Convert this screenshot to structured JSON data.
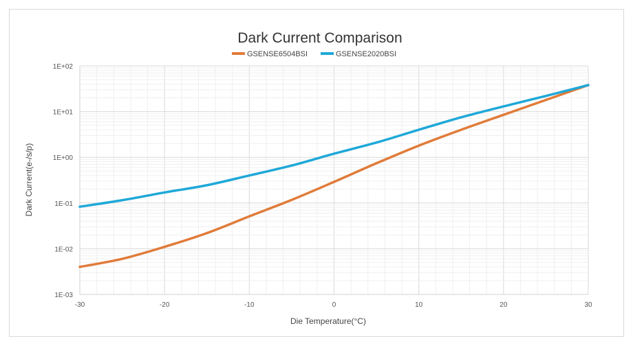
{
  "chart_data": {
    "type": "line",
    "title": "Dark Current Comparison",
    "xlabel": "Die Temperature(°C)",
    "ylabel": "Dark Current(e-/s/p)",
    "xlim": [
      -30,
      30
    ],
    "ylim": [
      0.001,
      100
    ],
    "yscale": "log",
    "grid": true,
    "legend_position": "top-center",
    "x_ticks": [
      -30,
      -20,
      -10,
      0,
      10,
      20,
      30
    ],
    "x_tick_labels": [
      "-30",
      "-20",
      "-10",
      "0",
      "10",
      "20",
      "30"
    ],
    "y_tick_labels": [
      "1E+02",
      "1E+01",
      "1E+00",
      "1E-01",
      "1E-02",
      "1E-03"
    ],
    "x": [
      -30,
      -25,
      -20,
      -15,
      -10,
      -5,
      0,
      5,
      10,
      15,
      20,
      25,
      30
    ],
    "series": [
      {
        "name": "GSENSE6504BSI",
        "color": "#e07b39",
        "values": [
          0.004,
          0.006,
          0.011,
          0.022,
          0.051,
          0.117,
          0.29,
          0.74,
          1.8,
          4.0,
          8.5,
          18,
          38
        ]
      },
      {
        "name": "GSENSE2020BSI",
        "color": "#1fa8d8",
        "values": [
          0.083,
          0.115,
          0.17,
          0.245,
          0.4,
          0.66,
          1.2,
          2.1,
          4.0,
          7.5,
          13,
          22,
          38
        ]
      }
    ]
  }
}
